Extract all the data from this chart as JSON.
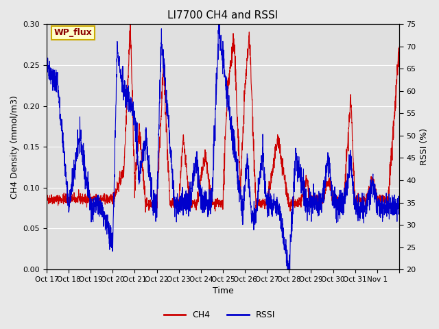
{
  "title": "LI7700 CH4 and RSSI",
  "xlabel": "Time",
  "ylabel_left": "CH4 Density (mmol/m3)",
  "ylabel_right": "RSSI (%)",
  "ylim_left": [
    0.0,
    0.3
  ],
  "ylim_right": [
    20,
    75
  ],
  "yticks_left": [
    0.0,
    0.05,
    0.1,
    0.15,
    0.2,
    0.25,
    0.3
  ],
  "yticks_right": [
    20,
    25,
    30,
    35,
    40,
    45,
    50,
    55,
    60,
    65,
    70,
    75
  ],
  "xtick_positions": [
    0,
    1,
    2,
    3,
    4,
    5,
    6,
    7,
    8,
    9,
    10,
    11,
    12,
    13,
    14,
    15,
    16
  ],
  "xtick_labels": [
    "Oct 17",
    "Oct 18",
    "Oct 19",
    "Oct 20",
    "Oct 21",
    "Oct 22",
    "Oct 23",
    "Oct 24",
    "Oct 25",
    "Oct 26",
    "Oct 27",
    "Oct 28",
    "Oct 29",
    "Oct 30",
    "Oct 31",
    "Nov 1",
    ""
  ],
  "legend_labels": [
    "CH4",
    "RSSI"
  ],
  "legend_colors": [
    "#cc0000",
    "#0000cc"
  ],
  "ch4_color": "#cc0000",
  "rssi_color": "#0000cc",
  "background_color": "#e8e8e8",
  "plot_bg_color": "#e0e0e0",
  "annotation_text": "WP_flux",
  "annotation_bg": "#ffffcc",
  "annotation_border": "#ccaa00"
}
